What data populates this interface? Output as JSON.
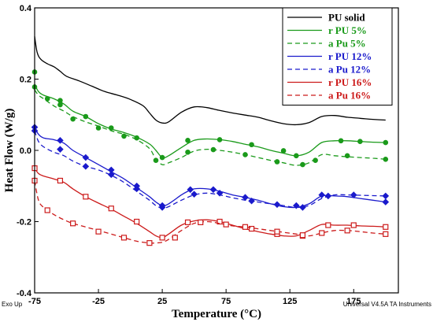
{
  "chart_data": {
    "type": "line",
    "xlabel": "Temperature (°C)",
    "ylabel": "Heat Flow (W/g)",
    "xlim": [
      -75,
      210
    ],
    "ylim": [
      -0.4,
      0.4
    ],
    "xticks": [
      -75,
      -25,
      25,
      75,
      125,
      175
    ],
    "xtick_labels": [
      "-75",
      "-25",
      "25",
      "75",
      "125",
      "175"
    ],
    "yticks": [
      -0.4,
      -0.2,
      0.0,
      0.2,
      0.4
    ],
    "ytick_labels": [
      "-0.4",
      "-0.2",
      "0.0",
      "0.2",
      "0.4"
    ],
    "legend_position": "top-right",
    "series": [
      {
        "name": "PU solid",
        "color": "#000000",
        "dash": "solid",
        "marker": "none",
        "x": [
          -75,
          -73,
          -70,
          -65,
          -60,
          -55,
          -50,
          -40,
          -30,
          -20,
          -10,
          0,
          10,
          15,
          20,
          25,
          30,
          40,
          50,
          60,
          70,
          80,
          90,
          100,
          110,
          120,
          130,
          140,
          150,
          160,
          170,
          180,
          190,
          200
        ],
        "y": [
          0.32,
          0.275,
          0.255,
          0.243,
          0.235,
          0.222,
          0.208,
          0.195,
          0.18,
          0.165,
          0.155,
          0.143,
          0.125,
          0.105,
          0.085,
          0.077,
          0.08,
          0.107,
          0.122,
          0.12,
          0.112,
          0.105,
          0.099,
          0.093,
          0.083,
          0.075,
          0.072,
          0.078,
          0.095,
          0.098,
          0.093,
          0.09,
          0.087,
          0.085
        ]
      },
      {
        "name": "r PU 5%",
        "color": "#1a9a1a",
        "dash": "solid",
        "marker": "circle",
        "x": [
          -75,
          -72,
          -68,
          -60,
          -52,
          -45,
          -35,
          -25,
          -15,
          -5,
          5,
          15,
          20,
          25,
          30,
          40,
          50,
          60,
          70,
          80,
          90,
          100,
          110,
          120,
          130,
          140,
          150,
          160,
          170,
          180,
          190,
          200
        ],
        "y": [
          0.185,
          0.165,
          0.155,
          0.145,
          0.13,
          0.11,
          0.095,
          0.075,
          0.06,
          0.05,
          0.037,
          0.018,
          0.0,
          -0.02,
          -0.015,
          0.008,
          0.028,
          0.032,
          0.03,
          0.025,
          0.017,
          0.01,
          0.0,
          -0.008,
          -0.015,
          -0.005,
          0.022,
          0.027,
          0.027,
          0.025,
          0.023,
          0.022
        ],
        "markers_x": [
          -75,
          -65,
          -55,
          -35,
          -15,
          5,
          25,
          45,
          70,
          95,
          120,
          130,
          165,
          180,
          200
        ],
        "markers_y": [
          0.22,
          0.145,
          0.14,
          0.095,
          0.063,
          0.035,
          -0.02,
          0.028,
          0.03,
          0.016,
          -0.001,
          -0.015,
          0.027,
          0.025,
          0.022
        ]
      },
      {
        "name": "a Pu 5%",
        "color": "#1a9a1a",
        "dash": "dash",
        "marker": "circle",
        "x": [
          -75,
          -72,
          -68,
          -60,
          -52,
          -45,
          -35,
          -25,
          -15,
          -5,
          5,
          15,
          20,
          25,
          30,
          40,
          50,
          60,
          70,
          80,
          90,
          100,
          110,
          120,
          130,
          140,
          150,
          160,
          170,
          180,
          190,
          200
        ],
        "y": [
          0.17,
          0.155,
          0.145,
          0.125,
          0.11,
          0.095,
          0.08,
          0.068,
          0.055,
          0.045,
          0.03,
          0.005,
          -0.025,
          -0.04,
          -0.035,
          -0.02,
          -0.002,
          0.003,
          0.0,
          -0.005,
          -0.012,
          -0.02,
          -0.028,
          -0.035,
          -0.042,
          -0.035,
          -0.012,
          -0.015,
          -0.018,
          -0.02,
          -0.022,
          -0.025
        ],
        "markers_x": [
          -75,
          -55,
          -45,
          -25,
          -5,
          20,
          45,
          65,
          90,
          115,
          135,
          145,
          170,
          200
        ],
        "markers_y": [
          0.178,
          0.128,
          0.088,
          0.063,
          0.04,
          -0.028,
          -0.005,
          0.002,
          -0.012,
          -0.032,
          -0.04,
          -0.028,
          -0.015,
          -0.025
        ]
      },
      {
        "name": "r PU 12%",
        "color": "#1a1acc",
        "dash": "solid",
        "marker": "diamond",
        "x": [
          -75,
          -72,
          -68,
          -60,
          -52,
          -45,
          -35,
          -25,
          -15,
          -5,
          5,
          15,
          20,
          25,
          30,
          40,
          45,
          50,
          60,
          70,
          80,
          90,
          100,
          110,
          120,
          130,
          140,
          150,
          160,
          170,
          180,
          190,
          200
        ],
        "y": [
          0.065,
          0.045,
          0.035,
          0.03,
          0.02,
          0.0,
          -0.02,
          -0.04,
          -0.06,
          -0.08,
          -0.105,
          -0.13,
          -0.145,
          -0.155,
          -0.15,
          -0.125,
          -0.115,
          -0.108,
          -0.108,
          -0.115,
          -0.125,
          -0.132,
          -0.14,
          -0.15,
          -0.158,
          -0.16,
          -0.15,
          -0.128,
          -0.128,
          -0.13,
          -0.135,
          -0.14,
          -0.145
        ],
        "markers_x": [
          -75,
          -55,
          -35,
          -15,
          5,
          25,
          47,
          65,
          90,
          115,
          135,
          155,
          200
        ],
        "markers_y": [
          0.065,
          0.028,
          -0.02,
          -0.055,
          -0.1,
          -0.155,
          -0.11,
          -0.11,
          -0.132,
          -0.152,
          -0.16,
          -0.128,
          -0.145
        ]
      },
      {
        "name": "a Pu 12%",
        "color": "#1a1acc",
        "dash": "dash",
        "marker": "diamond",
        "x": [
          -75,
          -72,
          -68,
          -60,
          -52,
          -45,
          -35,
          -25,
          -15,
          -5,
          5,
          15,
          20,
          25,
          30,
          40,
          50,
          60,
          70,
          80,
          90,
          100,
          110,
          120,
          130,
          140,
          150,
          160,
          170,
          180,
          190,
          200
        ],
        "y": [
          0.055,
          0.025,
          0.01,
          -0.005,
          -0.015,
          -0.03,
          -0.045,
          -0.055,
          -0.07,
          -0.09,
          -0.115,
          -0.14,
          -0.155,
          -0.162,
          -0.158,
          -0.14,
          -0.125,
          -0.12,
          -0.125,
          -0.133,
          -0.14,
          -0.145,
          -0.15,
          -0.155,
          -0.16,
          -0.155,
          -0.135,
          -0.125,
          -0.125,
          -0.126,
          -0.127,
          -0.128
        ],
        "markers_x": [
          -75,
          -55,
          -35,
          -15,
          5,
          25,
          50,
          70,
          95,
          130,
          150,
          175,
          200
        ],
        "markers_y": [
          0.055,
          0.003,
          -0.045,
          -0.068,
          -0.108,
          -0.16,
          -0.123,
          -0.12,
          -0.142,
          -0.155,
          -0.125,
          -0.125,
          -0.128
        ]
      },
      {
        "name": "r PU 16%",
        "color": "#cc1a1a",
        "dash": "solid",
        "marker": "square",
        "x": [
          -75,
          -72,
          -68,
          -60,
          -52,
          -45,
          -35,
          -25,
          -15,
          -5,
          5,
          15,
          20,
          25,
          30,
          40,
          50,
          60,
          70,
          80,
          90,
          100,
          110,
          120,
          130,
          140,
          150,
          160,
          170,
          180,
          190,
          200
        ],
        "y": [
          -0.05,
          -0.065,
          -0.072,
          -0.08,
          -0.09,
          -0.108,
          -0.13,
          -0.148,
          -0.165,
          -0.185,
          -0.205,
          -0.228,
          -0.24,
          -0.245,
          -0.235,
          -0.21,
          -0.198,
          -0.195,
          -0.2,
          -0.21,
          -0.22,
          -0.228,
          -0.235,
          -0.24,
          -0.24,
          -0.225,
          -0.208,
          -0.21,
          -0.21,
          -0.212,
          -0.213,
          -0.215
        ],
        "markers_x": [
          -75,
          -55,
          -35,
          -15,
          5,
          25,
          45,
          70,
          95,
          115,
          135,
          155,
          175,
          200
        ],
        "markers_y": [
          -0.05,
          -0.085,
          -0.13,
          -0.163,
          -0.2,
          -0.245,
          -0.202,
          -0.2,
          -0.22,
          -0.235,
          -0.24,
          -0.21,
          -0.21,
          -0.215
        ]
      },
      {
        "name": "a Pu 16%",
        "color": "#cc1a1a",
        "dash": "dash",
        "marker": "square",
        "x": [
          -75,
          -72,
          -68,
          -60,
          -52,
          -45,
          -35,
          -25,
          -15,
          -5,
          5,
          15,
          20,
          25,
          30,
          40,
          50,
          60,
          70,
          80,
          90,
          100,
          110,
          120,
          130,
          140,
          150,
          160,
          170,
          180,
          190,
          200
        ],
        "y": [
          -0.085,
          -0.14,
          -0.16,
          -0.18,
          -0.195,
          -0.205,
          -0.215,
          -0.225,
          -0.235,
          -0.245,
          -0.255,
          -0.26,
          -0.26,
          -0.258,
          -0.25,
          -0.225,
          -0.205,
          -0.2,
          -0.205,
          -0.212,
          -0.215,
          -0.22,
          -0.225,
          -0.23,
          -0.235,
          -0.24,
          -0.232,
          -0.225,
          -0.225,
          -0.228,
          -0.232,
          -0.235
        ],
        "markers_x": [
          -75,
          -65,
          -45,
          -25,
          -5,
          15,
          35,
          55,
          75,
          90,
          115,
          135,
          150,
          170,
          200
        ],
        "markers_y": [
          -0.085,
          -0.168,
          -0.205,
          -0.228,
          -0.245,
          -0.26,
          -0.245,
          -0.202,
          -0.208,
          -0.215,
          -0.228,
          -0.238,
          -0.232,
          -0.225,
          -0.235
        ]
      }
    ]
  },
  "footer": {
    "left": "Exo Up",
    "right": "Universal V4.5A TA Instruments"
  }
}
